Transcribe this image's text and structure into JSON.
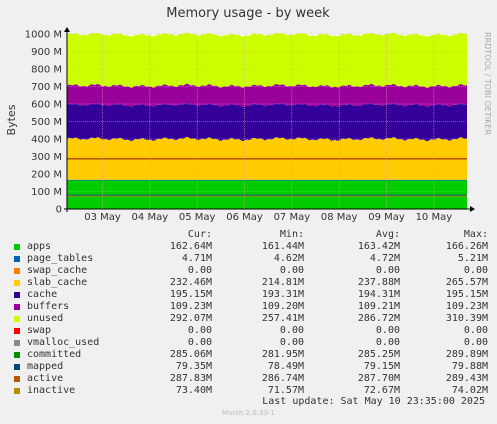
{
  "chart_data": {
    "type": "area",
    "title": "Memory usage - by week",
    "ylabel": "Bytes",
    "side_label": "RRDTOOL / TOBI OETIKER",
    "ylim": [
      0,
      1000
    ],
    "y_ticks": [
      0,
      100,
      200,
      300,
      400,
      500,
      600,
      700,
      800,
      900,
      1000
    ],
    "y_tick_labels": [
      "0",
      "100 M",
      "200 M",
      "300 M",
      "400 M",
      "500 M",
      "600 M",
      "700 M",
      "800 M",
      "900 M",
      "1000 M"
    ],
    "x_ticks": [
      {
        "day": 1,
        "label": "03 May"
      },
      {
        "day": 2,
        "label": "04 May"
      },
      {
        "day": 3,
        "label": "05 May"
      },
      {
        "day": 4,
        "label": "06 May"
      },
      {
        "day": 5,
        "label": "07 May"
      },
      {
        "day": 6,
        "label": "08 May"
      },
      {
        "day": 7,
        "label": "09 May"
      },
      {
        "day": 8,
        "label": "10 May"
      }
    ],
    "xlim": [
      0.25,
      8.7
    ],
    "stack_series": [
      {
        "name": "apps",
        "color": "#00cc00",
        "value": 162.6
      },
      {
        "name": "page_tables",
        "color": "#0066b3",
        "value": 4.7
      },
      {
        "name": "swap_cache",
        "color": "#ff8000",
        "value": 0
      },
      {
        "name": "slab_cache",
        "color": "#ffcc00",
        "value": 232.5,
        "min": 214.8,
        "max": 265.6
      },
      {
        "name": "cache",
        "color": "#330099",
        "value": 195.2
      },
      {
        "name": "buffers",
        "color": "#990099",
        "value": 109.2
      },
      {
        "name": "unused",
        "color": "#ccff00",
        "value": 292.1
      }
    ],
    "line_series": [
      {
        "name": "committed",
        "color": "#888800",
        "value": 285.1
      },
      {
        "name": "mapped",
        "color": "#005588",
        "value": 79.4
      },
      {
        "name": "active",
        "color": "#cc3300",
        "value": 287.8
      },
      {
        "name": "inactive",
        "color": "#aa8800",
        "value": 73.4
      }
    ],
    "legend_columns": [
      "Cur:",
      "Min:",
      "Avg:",
      "Max:"
    ],
    "legend": [
      {
        "name": "apps",
        "color": "#00cc00",
        "cur": "162.64M",
        "min": "161.44M",
        "avg": "163.42M",
        "max": "166.26M"
      },
      {
        "name": "page_tables",
        "color": "#0066b3",
        "cur": "4.71M",
        "min": "4.62M",
        "avg": "4.72M",
        "max": "5.21M"
      },
      {
        "name": "swap_cache",
        "color": "#ff8000",
        "cur": "0.00",
        "min": "0.00",
        "avg": "0.00",
        "max": "0.00"
      },
      {
        "name": "slab_cache",
        "color": "#ffcc00",
        "cur": "232.46M",
        "min": "214.81M",
        "avg": "237.88M",
        "max": "265.57M"
      },
      {
        "name": "cache",
        "color": "#330099",
        "cur": "195.15M",
        "min": "193.31M",
        "avg": "194.31M",
        "max": "195.15M"
      },
      {
        "name": "buffers",
        "color": "#990099",
        "cur": "109.23M",
        "min": "109.20M",
        "avg": "109.21M",
        "max": "109.23M"
      },
      {
        "name": "unused",
        "color": "#ccff00",
        "cur": "292.07M",
        "min": "257.41M",
        "avg": "286.72M",
        "max": "310.39M"
      },
      {
        "name": "swap",
        "color": "#ff0000",
        "cur": "0.00",
        "min": "0.00",
        "avg": "0.00",
        "max": "0.00"
      },
      {
        "name": "vmalloc_used",
        "color": "#888888",
        "cur": "0.00",
        "min": "0.00",
        "avg": "0.00",
        "max": "0.00"
      },
      {
        "name": "committed",
        "color": "#008f00",
        "cur": "285.06M",
        "min": "281.95M",
        "avg": "285.25M",
        "max": "289.89M"
      },
      {
        "name": "mapped",
        "color": "#00487d",
        "cur": "79.35M",
        "min": "78.49M",
        "avg": "79.15M",
        "max": "79.88M"
      },
      {
        "name": "active",
        "color": "#b35a00",
        "cur": "287.83M",
        "min": "286.74M",
        "avg": "287.70M",
        "max": "289.43M"
      },
      {
        "name": "inactive",
        "color": "#b38f00",
        "cur": "73.40M",
        "min": "71.57M",
        "avg": "72.67M",
        "max": "74.02M"
      }
    ]
  },
  "footer": {
    "last_update": "Last update:  Sat May 10 23:35:00 2025",
    "munin_version": "Munin 2.0.33-1"
  }
}
